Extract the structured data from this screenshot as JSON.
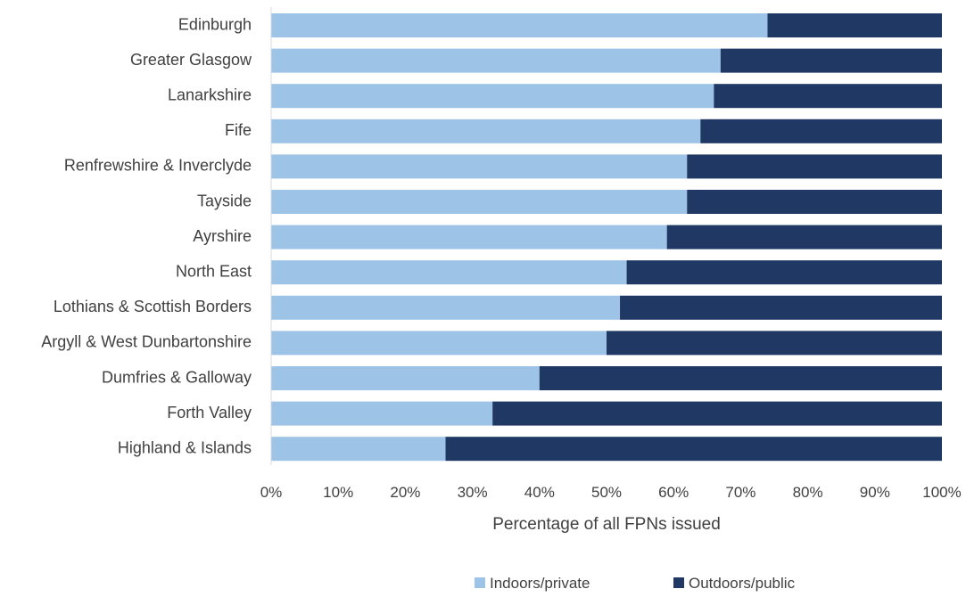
{
  "colors": {
    "indoors": "#9dc3e6",
    "outdoors": "#1f3864",
    "axis_line": "#d9d9d9",
    "text": "#404040"
  },
  "chart_data": {
    "type": "bar",
    "orientation": "horizontal",
    "stacked": "percent",
    "categories": [
      "Edinburgh",
      "Greater Glasgow",
      "Lanarkshire",
      "Fife",
      "Renfrewshire & Inverclyde",
      "Tayside",
      "Ayrshire",
      "North East",
      "Lothians & Scottish Borders",
      "Argyll & West Dunbartonshire",
      "Dumfries & Galloway",
      "Forth Valley",
      "Highland & Islands"
    ],
    "series": [
      {
        "name": "Indoors/private",
        "values": [
          74,
          67,
          66,
          64,
          62,
          62,
          59,
          53,
          52,
          50,
          40,
          33,
          26
        ]
      },
      {
        "name": "Outdoors/public",
        "values": [
          26,
          33,
          34,
          36,
          38,
          38,
          41,
          47,
          48,
          50,
          60,
          67,
          74
        ]
      }
    ],
    "xlabel": "Percentage of all FPNs issued",
    "ylabel": "",
    "xlim": [
      0,
      100
    ],
    "x_ticks": [
      "0%",
      "10%",
      "20%",
      "30%",
      "40%",
      "50%",
      "60%",
      "70%",
      "80%",
      "90%",
      "100%"
    ],
    "grid": false,
    "legend": "bottom"
  }
}
